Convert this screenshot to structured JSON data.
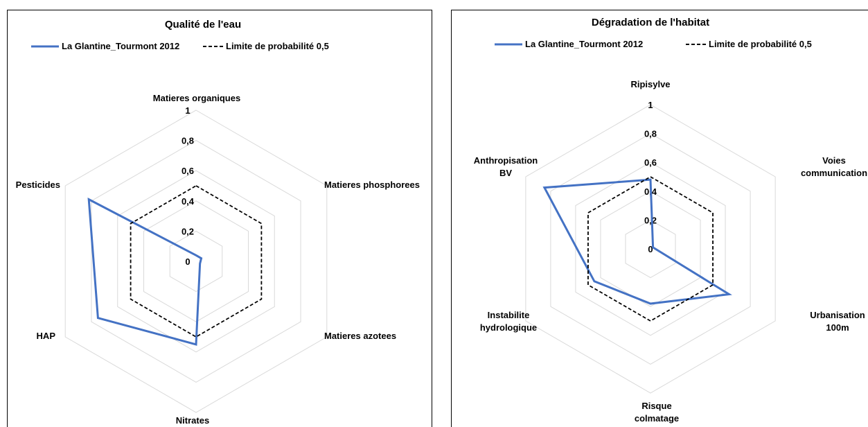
{
  "chart_data": [
    {
      "type": "radar",
      "title": "Qualité de l'eau",
      "axes": [
        "Matieres organiques",
        "Matieres phosphorees",
        "Matieres azotees",
        "Nitrates",
        "HAP",
        "Pesticides"
      ],
      "ticks": [
        "0",
        "0,2",
        "0,4",
        "0,6",
        "0,8",
        "1"
      ],
      "rlim": [
        0,
        1
      ],
      "grid": true,
      "legend_position": "top",
      "series": [
        {
          "name": "La Glantine_Tourmont 2012",
          "values": [
            0.04,
            0.04,
            0.03,
            0.55,
            0.75,
            0.82
          ],
          "color": "#4472C4",
          "style": "solid"
        },
        {
          "name": "Limite de probabilité 0,5",
          "values": [
            0.5,
            0.5,
            0.5,
            0.5,
            0.5,
            0.5
          ],
          "color": "#000000",
          "style": "dashed"
        }
      ]
    },
    {
      "type": "radar",
      "title": "Dégradation de l'habitat",
      "axes": [
        "Ripisylve",
        "Voies communication",
        "Urbanisation 100m",
        "Risque colmatage",
        "Instabilite hydrologique",
        "Anthropisation BV"
      ],
      "ticks": [
        "0",
        "0,2",
        "0,4",
        "0,6",
        "0,8",
        "1"
      ],
      "rlim": [
        0,
        1
      ],
      "grid": true,
      "legend_position": "top",
      "series": [
        {
          "name": "La Glantine_Tourmont 2012",
          "values": [
            0.48,
            0.02,
            0.63,
            0.38,
            0.45,
            0.85
          ],
          "color": "#4472C4",
          "style": "solid"
        },
        {
          "name": "Limite de probabilité 0,5",
          "values": [
            0.5,
            0.5,
            0.5,
            0.5,
            0.5,
            0.5
          ],
          "color": "#000000",
          "style": "dashed"
        }
      ]
    }
  ]
}
